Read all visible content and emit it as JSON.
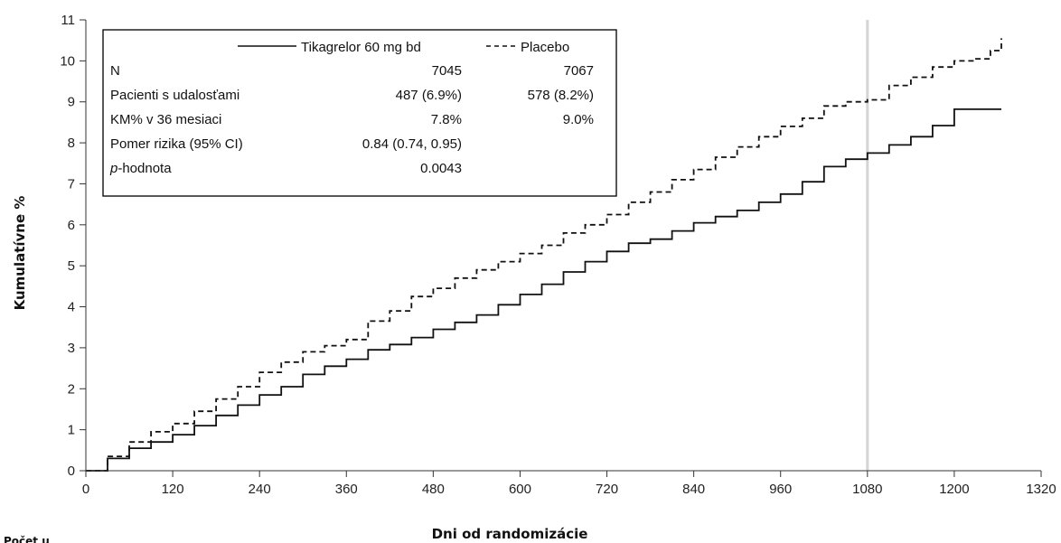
{
  "chart_data": {
    "type": "line",
    "title": "",
    "xlabel": "Dni od randomizácie",
    "ylabel": "Kumulatívne %",
    "xlim": [
      0,
      1320
    ],
    "ylim": [
      0,
      11
    ],
    "x_ticks": [
      "0",
      "120",
      "240",
      "360",
      "480",
      "600",
      "720",
      "840",
      "960",
      "1080",
      "1200",
      "1320"
    ],
    "y_ticks": [
      "0",
      "1",
      "2",
      "3",
      "4",
      "5",
      "6",
      "7",
      "8",
      "9",
      "10",
      "11"
    ],
    "reference_line_x": 1080,
    "series": [
      {
        "name": "Tikagrelor 60 mg bd",
        "style": "solid",
        "color": "#111111",
        "x": [
          0,
          30,
          60,
          90,
          120,
          150,
          180,
          210,
          240,
          270,
          300,
          330,
          360,
          390,
          420,
          450,
          480,
          510,
          540,
          570,
          600,
          630,
          660,
          690,
          720,
          750,
          780,
          810,
          840,
          870,
          900,
          930,
          960,
          990,
          1020,
          1050,
          1080,
          1110,
          1140,
          1170,
          1200,
          1230,
          1265
        ],
        "y": [
          0,
          0.3,
          0.55,
          0.7,
          0.88,
          1.1,
          1.35,
          1.6,
          1.85,
          2.05,
          2.35,
          2.55,
          2.72,
          2.95,
          3.08,
          3.25,
          3.45,
          3.62,
          3.8,
          4.05,
          4.3,
          4.55,
          4.85,
          5.1,
          5.35,
          5.55,
          5.65,
          5.85,
          6.05,
          6.2,
          6.35,
          6.55,
          6.75,
          7.05,
          7.42,
          7.6,
          7.75,
          7.95,
          8.15,
          8.42,
          8.82,
          8.82,
          8.82
        ]
      },
      {
        "name": "Placebo",
        "style": "dashed",
        "color": "#111111",
        "x": [
          0,
          30,
          60,
          90,
          120,
          150,
          180,
          210,
          240,
          270,
          300,
          330,
          360,
          390,
          420,
          450,
          480,
          510,
          540,
          570,
          600,
          630,
          660,
          690,
          720,
          750,
          780,
          810,
          840,
          870,
          900,
          930,
          960,
          990,
          1020,
          1050,
          1080,
          1110,
          1140,
          1170,
          1200,
          1230,
          1250,
          1265
        ],
        "y": [
          0,
          0.35,
          0.7,
          0.95,
          1.15,
          1.45,
          1.75,
          2.05,
          2.4,
          2.65,
          2.9,
          3.05,
          3.2,
          3.65,
          3.9,
          4.25,
          4.45,
          4.7,
          4.9,
          5.1,
          5.3,
          5.5,
          5.8,
          6.0,
          6.25,
          6.55,
          6.8,
          7.1,
          7.35,
          7.65,
          7.9,
          8.15,
          8.4,
          8.6,
          8.9,
          9.0,
          9.05,
          9.4,
          9.6,
          9.85,
          10.0,
          10.05,
          10.25,
          10.55
        ]
      }
    ],
    "legend": {
      "placement": "top-left",
      "columns": [
        "Tikagrelor 60 mg bd",
        "Placebo"
      ],
      "rows": [
        {
          "label": "N",
          "label_style": "normal",
          "label_rest": "",
          "values": [
            "7045",
            "7067"
          ]
        },
        {
          "label": "Pacienti s udalosťami",
          "label_style": "normal",
          "label_rest": "",
          "values": [
            "487 (6.9%)",
            "578 (8.2%)"
          ]
        },
        {
          "label": "KM% v 36 mesiaci",
          "label_style": "normal",
          "label_rest": "",
          "values": [
            "7.8%",
            "9.0%"
          ]
        },
        {
          "label": "Pomer rizika (95% CI)",
          "label_style": "normal",
          "label_rest": "",
          "values": [
            "0.84 (0.74, 0.95)",
            ""
          ]
        },
        {
          "label": "p",
          "label_style": "italic",
          "label_rest": "-hodnota",
          "values": [
            "0.0043",
            ""
          ]
        }
      ]
    },
    "grid": false
  },
  "footer_stub": "Počet u"
}
